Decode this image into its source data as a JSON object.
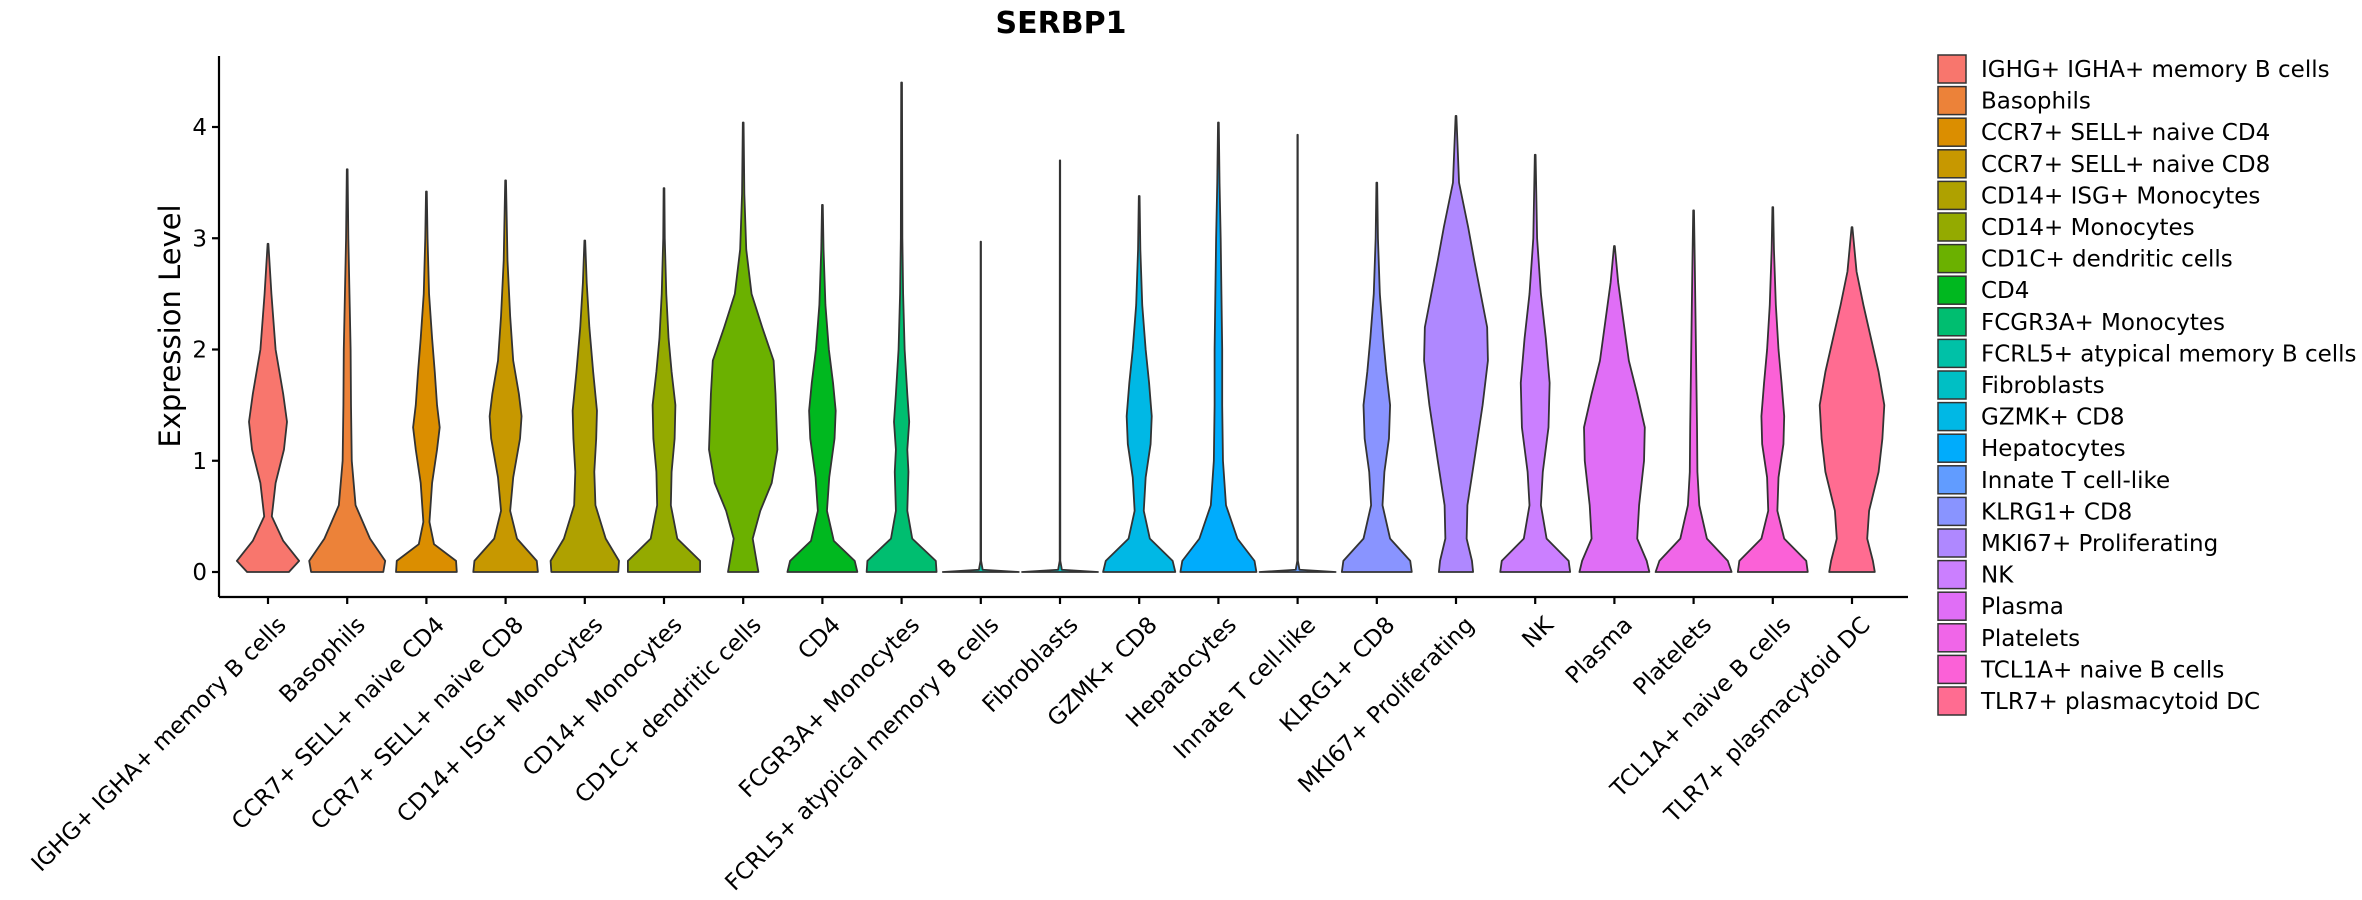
{
  "chart_data": {
    "type": "violin",
    "title": "SERBP1",
    "ylabel": "Expression Level",
    "xlabel": "",
    "ylim": [
      -0.22,
      4.65
    ],
    "yticks": [
      0,
      1,
      2,
      3,
      4
    ],
    "grid": false,
    "legend_position": "right",
    "series": [
      {
        "name": " IGHG+ IGHA+ memory B cells",
        "tick_label": "IGHG+ IGHA+ memory B cells",
        "color": "#F8766D",
        "max": 2.95,
        "density": [
          [
            0,
            0.55
          ],
          [
            0.1,
            0.82
          ],
          [
            0.28,
            0.4
          ],
          [
            0.5,
            0.1
          ],
          [
            0.8,
            0.2
          ],
          [
            1.1,
            0.42
          ],
          [
            1.35,
            0.5
          ],
          [
            1.6,
            0.4
          ],
          [
            2.0,
            0.2
          ],
          [
            2.5,
            0.09
          ],
          [
            2.95,
            0.01
          ]
        ]
      },
      {
        "name": "Basophils",
        "tick_label": "Basophils",
        "color": "#EC8239",
        "max": 3.62,
        "density": [
          [
            0,
            0.95
          ],
          [
            0.1,
            1.0
          ],
          [
            0.3,
            0.6
          ],
          [
            0.6,
            0.22
          ],
          [
            1.0,
            0.12
          ],
          [
            1.5,
            0.1
          ],
          [
            2.0,
            0.09
          ],
          [
            2.5,
            0.06
          ],
          [
            3.0,
            0.03
          ],
          [
            3.62,
            0.01
          ]
        ]
      },
      {
        "name": "CCR7+ SELL+ naive CD4",
        "tick_label": "CCR7+ SELL+ naive CD4",
        "color": "#DB8E00",
        "max": 3.42,
        "density": [
          [
            0,
            0.8
          ],
          [
            0.1,
            0.78
          ],
          [
            0.25,
            0.2
          ],
          [
            0.45,
            0.08
          ],
          [
            0.8,
            0.15
          ],
          [
            1.1,
            0.28
          ],
          [
            1.3,
            0.35
          ],
          [
            1.5,
            0.28
          ],
          [
            1.8,
            0.22
          ],
          [
            2.1,
            0.15
          ],
          [
            2.5,
            0.07
          ],
          [
            3.0,
            0.03
          ],
          [
            3.42,
            0.01
          ]
        ]
      },
      {
        "name": "CCR7+ SELL+ naive CD8",
        "tick_label": "CCR7+ SELL+ naive CD8",
        "color": "#C79800",
        "max": 3.52,
        "density": [
          [
            0,
            0.85
          ],
          [
            0.1,
            0.82
          ],
          [
            0.3,
            0.3
          ],
          [
            0.55,
            0.12
          ],
          [
            0.85,
            0.2
          ],
          [
            1.2,
            0.38
          ],
          [
            1.4,
            0.42
          ],
          [
            1.6,
            0.35
          ],
          [
            1.9,
            0.2
          ],
          [
            2.3,
            0.12
          ],
          [
            2.8,
            0.05
          ],
          [
            3.52,
            0.01
          ]
        ]
      },
      {
        "name": "CD14+ ISG+ Monocytes",
        "tick_label": "CD14+ ISG+ Monocytes",
        "color": "#AFA100",
        "max": 2.98,
        "density": [
          [
            0,
            0.88
          ],
          [
            0.1,
            0.9
          ],
          [
            0.3,
            0.55
          ],
          [
            0.6,
            0.28
          ],
          [
            0.9,
            0.25
          ],
          [
            1.2,
            0.3
          ],
          [
            1.45,
            0.32
          ],
          [
            1.8,
            0.22
          ],
          [
            2.2,
            0.12
          ],
          [
            2.6,
            0.05
          ],
          [
            2.98,
            0.01
          ]
        ]
      },
      {
        "name": "CD14+ Monocytes",
        "tick_label": "CD14+ Monocytes",
        "color": "#94AA00",
        "max": 3.45,
        "density": [
          [
            0,
            0.95
          ],
          [
            0.1,
            0.95
          ],
          [
            0.3,
            0.35
          ],
          [
            0.6,
            0.18
          ],
          [
            0.9,
            0.2
          ],
          [
            1.2,
            0.28
          ],
          [
            1.5,
            0.3
          ],
          [
            1.8,
            0.2
          ],
          [
            2.1,
            0.12
          ],
          [
            2.5,
            0.06
          ],
          [
            3.0,
            0.02
          ],
          [
            3.45,
            0.01
          ]
        ]
      },
      {
        "name": "CD1C+ dendritic cells",
        "tick_label": "CD1C+ dendritic cells",
        "color": "#6BB100",
        "max": 4.04,
        "density": [
          [
            0,
            0.4
          ],
          [
            0.1,
            0.35
          ],
          [
            0.3,
            0.25
          ],
          [
            0.55,
            0.45
          ],
          [
            0.8,
            0.75
          ],
          [
            1.1,
            0.9
          ],
          [
            1.3,
            0.88
          ],
          [
            1.6,
            0.85
          ],
          [
            1.9,
            0.8
          ],
          [
            2.2,
            0.5
          ],
          [
            2.5,
            0.22
          ],
          [
            2.9,
            0.08
          ],
          [
            3.4,
            0.03
          ],
          [
            4.04,
            0.01
          ]
        ]
      },
      {
        "name": "CD4",
        "tick_label": "CD4",
        "color": "#00B81F",
        "max": 3.3,
        "density": [
          [
            0,
            0.92
          ],
          [
            0.1,
            0.85
          ],
          [
            0.28,
            0.3
          ],
          [
            0.55,
            0.12
          ],
          [
            0.85,
            0.18
          ],
          [
            1.2,
            0.32
          ],
          [
            1.45,
            0.35
          ],
          [
            1.7,
            0.28
          ],
          [
            2.0,
            0.17
          ],
          [
            2.4,
            0.08
          ],
          [
            2.9,
            0.03
          ],
          [
            3.3,
            0.01
          ]
        ]
      },
      {
        "name": "FCGR3A+ Monocytes",
        "tick_label": "FCGR3A+ Monocytes",
        "color": "#00BE70",
        "max": 4.4,
        "density": [
          [
            0,
            0.92
          ],
          [
            0.1,
            0.9
          ],
          [
            0.3,
            0.28
          ],
          [
            0.55,
            0.15
          ],
          [
            0.9,
            0.18
          ],
          [
            1.1,
            0.15
          ],
          [
            1.35,
            0.2
          ],
          [
            1.6,
            0.15
          ],
          [
            2.0,
            0.08
          ],
          [
            2.5,
            0.04
          ],
          [
            3.0,
            0.02
          ],
          [
            4.4,
            0.01
          ]
        ]
      },
      {
        "name": "FCRL5+ atypical memory B cells",
        "tick_label": "FCRL5+ atypical memory B cells",
        "color": "#00C1A7",
        "max": 2.97,
        "density": [
          [
            0,
            1.0
          ],
          [
            0.02,
            0.05
          ],
          [
            0.1,
            0.008
          ],
          [
            2.97,
            0.005
          ]
        ]
      },
      {
        "name": "Fibroblasts",
        "tick_label": "Fibroblasts",
        "color": "#00BFC4",
        "max": 3.7,
        "density": [
          [
            0,
            1.0
          ],
          [
            0.02,
            0.05
          ],
          [
            0.1,
            0.008
          ],
          [
            3.7,
            0.005
          ]
        ]
      },
      {
        "name": "GZMK+ CD8",
        "tick_label": "GZMK+ CD8",
        "color": "#00B8E5",
        "max": 3.38,
        "density": [
          [
            0,
            0.95
          ],
          [
            0.1,
            0.88
          ],
          [
            0.3,
            0.28
          ],
          [
            0.55,
            0.12
          ],
          [
            0.85,
            0.17
          ],
          [
            1.15,
            0.3
          ],
          [
            1.4,
            0.33
          ],
          [
            1.7,
            0.26
          ],
          [
            2.0,
            0.17
          ],
          [
            2.4,
            0.08
          ],
          [
            2.9,
            0.03
          ],
          [
            3.38,
            0.01
          ]
        ]
      },
      {
        "name": "Hepatocytes",
        "tick_label": "Hepatocytes",
        "color": "#00ACFC",
        "max": 4.04,
        "density": [
          [
            0,
            1.0
          ],
          [
            0.1,
            0.95
          ],
          [
            0.3,
            0.5
          ],
          [
            0.6,
            0.2
          ],
          [
            1.0,
            0.12
          ],
          [
            1.5,
            0.1
          ],
          [
            2.0,
            0.1
          ],
          [
            2.5,
            0.08
          ],
          [
            3.0,
            0.06
          ],
          [
            3.5,
            0.03
          ],
          [
            4.04,
            0.01
          ]
        ]
      },
      {
        "name": "Innate T cell-like",
        "tick_label": "Innate T cell-like",
        "color": "#619CFF",
        "max": 3.93,
        "density": [
          [
            0,
            1.0
          ],
          [
            0.02,
            0.05
          ],
          [
            0.1,
            0.008
          ],
          [
            3.93,
            0.005
          ]
        ]
      },
      {
        "name": "KLRG1+ CD8",
        "tick_label": "KLRG1+ CD8",
        "color": "#8994FF",
        "max": 3.5,
        "density": [
          [
            0,
            0.92
          ],
          [
            0.1,
            0.88
          ],
          [
            0.3,
            0.35
          ],
          [
            0.6,
            0.15
          ],
          [
            0.9,
            0.2
          ],
          [
            1.2,
            0.32
          ],
          [
            1.5,
            0.35
          ],
          [
            1.8,
            0.25
          ],
          [
            2.1,
            0.17
          ],
          [
            2.5,
            0.08
          ],
          [
            3.0,
            0.03
          ],
          [
            3.5,
            0.01
          ]
        ]
      },
      {
        "name": "MKI67+ Proliferating",
        "tick_label": "MKI67+ Proliferating",
        "color": "#AF88FF",
        "max": 4.1,
        "density": [
          [
            0,
            0.45
          ],
          [
            0.1,
            0.42
          ],
          [
            0.3,
            0.28
          ],
          [
            0.6,
            0.3
          ],
          [
            1.0,
            0.48
          ],
          [
            1.5,
            0.7
          ],
          [
            1.9,
            0.84
          ],
          [
            2.2,
            0.82
          ],
          [
            2.5,
            0.65
          ],
          [
            2.8,
            0.48
          ],
          [
            3.1,
            0.32
          ],
          [
            3.5,
            0.08
          ],
          [
            4.1,
            0.01
          ]
        ]
      },
      {
        "name": "NK",
        "tick_label": "NK",
        "color": "#CB7FFF",
        "max": 3.75,
        "density": [
          [
            0,
            0.92
          ],
          [
            0.1,
            0.88
          ],
          [
            0.3,
            0.3
          ],
          [
            0.6,
            0.15
          ],
          [
            0.9,
            0.2
          ],
          [
            1.3,
            0.35
          ],
          [
            1.7,
            0.38
          ],
          [
            2.1,
            0.28
          ],
          [
            2.5,
            0.15
          ],
          [
            3.0,
            0.05
          ],
          [
            3.75,
            0.01
          ]
        ]
      },
      {
        "name": "Plasma",
        "tick_label": "Plasma",
        "color": "#E06EF6",
        "max": 2.93,
        "density": [
          [
            0,
            0.92
          ],
          [
            0.1,
            0.85
          ],
          [
            0.3,
            0.6
          ],
          [
            0.6,
            0.65
          ],
          [
            1.0,
            0.78
          ],
          [
            1.3,
            0.8
          ],
          [
            1.6,
            0.6
          ],
          [
            1.9,
            0.38
          ],
          [
            2.3,
            0.22
          ],
          [
            2.6,
            0.1
          ],
          [
            2.93,
            0.01
          ]
        ]
      },
      {
        "name": "Platelets",
        "tick_label": "Platelets",
        "color": "#F066E8",
        "max": 3.25,
        "density": [
          [
            0,
            1.0
          ],
          [
            0.1,
            0.9
          ],
          [
            0.3,
            0.35
          ],
          [
            0.6,
            0.15
          ],
          [
            0.9,
            0.1
          ],
          [
            1.3,
            0.09
          ],
          [
            1.8,
            0.07
          ],
          [
            2.3,
            0.05
          ],
          [
            2.8,
            0.03
          ],
          [
            3.25,
            0.01
          ]
        ]
      },
      {
        "name": "TCL1A+ naive B cells",
        "tick_label": "TCL1A+ naive B cells",
        "color": "#FB61D7",
        "max": 3.28,
        "density": [
          [
            0,
            0.92
          ],
          [
            0.1,
            0.88
          ],
          [
            0.3,
            0.3
          ],
          [
            0.55,
            0.12
          ],
          [
            0.85,
            0.15
          ],
          [
            1.15,
            0.28
          ],
          [
            1.4,
            0.3
          ],
          [
            1.7,
            0.23
          ],
          [
            2.0,
            0.15
          ],
          [
            2.4,
            0.08
          ],
          [
            2.9,
            0.03
          ],
          [
            3.28,
            0.01
          ]
        ]
      },
      {
        "name": "TLR7+ plasmacytoid DC",
        "tick_label": "TLR7+ plasmacytoid DC",
        "color": "#FF6C91",
        "max": 3.1,
        "density": [
          [
            0,
            0.6
          ],
          [
            0.1,
            0.55
          ],
          [
            0.3,
            0.4
          ],
          [
            0.55,
            0.45
          ],
          [
            0.9,
            0.7
          ],
          [
            1.2,
            0.8
          ],
          [
            1.5,
            0.85
          ],
          [
            1.8,
            0.7
          ],
          [
            2.1,
            0.5
          ],
          [
            2.4,
            0.3
          ],
          [
            2.7,
            0.12
          ],
          [
            3.1,
            0.01
          ]
        ]
      }
    ]
  }
}
